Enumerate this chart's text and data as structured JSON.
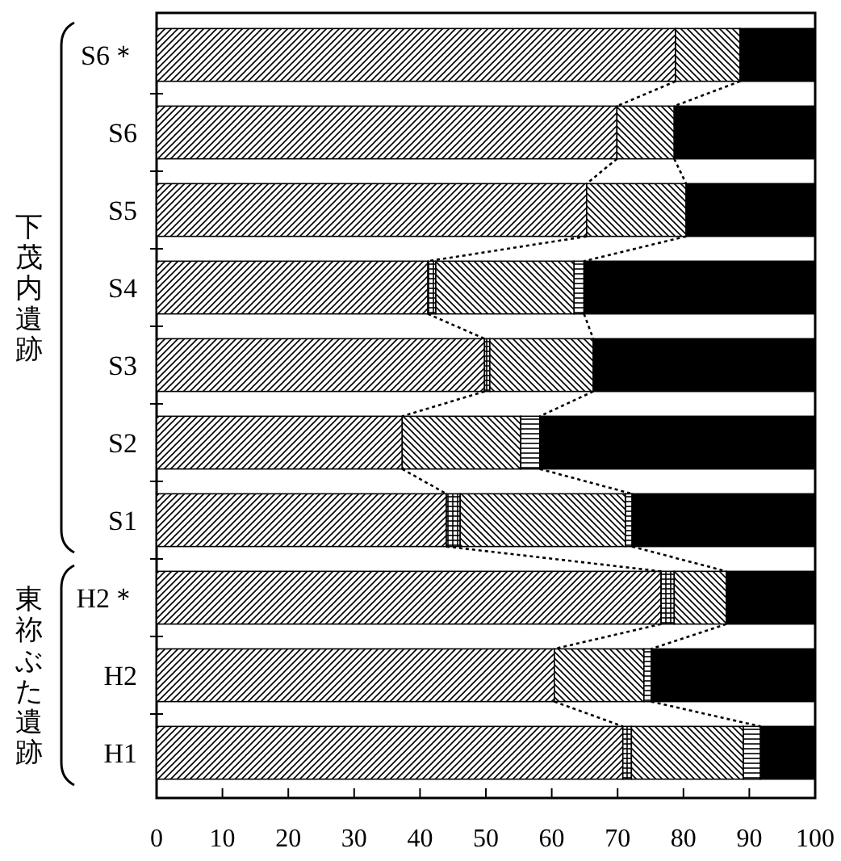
{
  "chart_data": {
    "type": "bar",
    "orientation": "horizontal",
    "stacked": true,
    "categories": [
      "S6＊",
      "S6",
      "S5",
      "S4",
      "S3",
      "S2",
      "S1",
      "H2＊",
      "H2",
      "H1"
    ],
    "series": [
      {
        "color": "#000000",
        "values": [
          78.8,
          69.9,
          65.3,
          41.2,
          49.8,
          37.3,
          44.0,
          76.6,
          60.4,
          70.8
        ]
      },
      {
        "color": "#000000",
        "values": [
          0,
          0,
          0,
          1.2,
          0.8,
          0,
          2.1,
          2.0,
          0,
          1.3
        ]
      },
      {
        "color": "#000000",
        "values": [
          9.8,
          8.7,
          15.1,
          21.0,
          15.7,
          18.0,
          25.1,
          7.9,
          13.6,
          17.0
        ]
      },
      {
        "color": "#000000",
        "values": [
          0,
          0,
          0,
          1.5,
          0,
          2.9,
          1.0,
          0,
          1.1,
          2.6
        ]
      },
      {
        "color": "#000000",
        "values": [
          11.4,
          21.4,
          19.6,
          35.1,
          33.7,
          41.8,
          27.8,
          13.5,
          24.9,
          8.3
        ]
      }
    ],
    "xlim": [
      0,
      100
    ],
    "xticks": [
      0,
      10,
      20,
      30,
      40,
      50,
      60,
      70,
      80,
      90,
      100
    ],
    "annotations": [
      "下茂内遺跡",
      "東祢ぶた遺跡"
    ]
  }
}
